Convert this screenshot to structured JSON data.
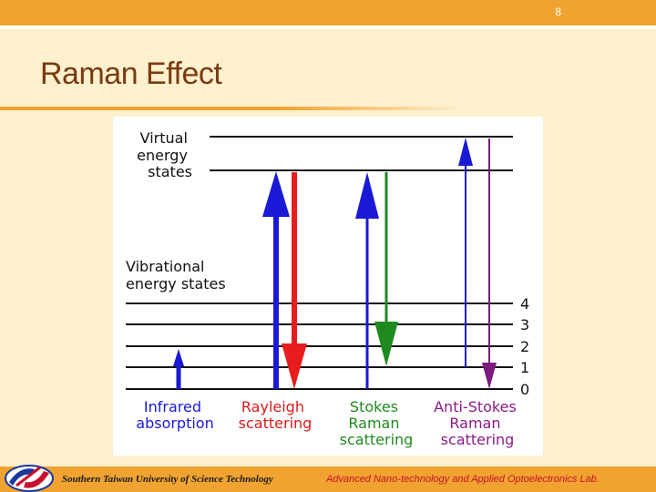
{
  "header": {
    "slide_number": "8",
    "title": "Raman Effect"
  },
  "diagram": {
    "virtual_label": [
      "Virtual",
      "energy",
      "states"
    ],
    "vibrational_label": [
      "Vibrational",
      "energy states"
    ],
    "levels": [
      "0",
      "1",
      "2",
      "3",
      "4"
    ],
    "processes": [
      {
        "label": [
          "Infrared",
          "absorption"
        ],
        "color": "#1a1ad6"
      },
      {
        "label": [
          "Rayleigh",
          "scattering"
        ],
        "color": "#d81b1b"
      },
      {
        "label": [
          "Stokes",
          "Raman",
          "scattering"
        ],
        "color": "#1f8a1f"
      },
      {
        "label": [
          "Anti-Stokes",
          "Raman",
          "scattering"
        ],
        "color": "#8a1a8a"
      }
    ]
  },
  "footer": {
    "institution": "Southern Taiwan University of Science Technology",
    "lab": "Advanced Nano-technology and Applied Optoelectronics Lab."
  },
  "colors": {
    "accent": "#f0a330",
    "title": "#7a3a0f",
    "background": "#fdf0cf",
    "blue": "#1a1ad6",
    "red": "#e81c1c",
    "green": "#1f8a1f",
    "purple": "#7d1a7d"
  }
}
